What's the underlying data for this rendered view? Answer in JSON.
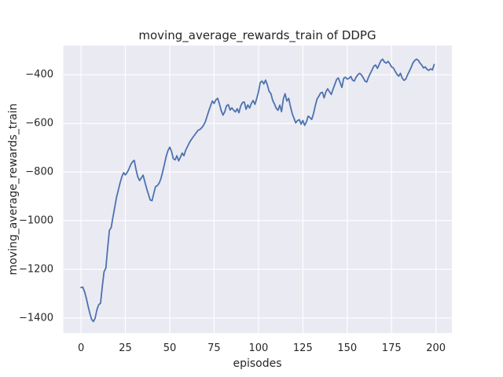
{
  "chart_data": {
    "type": "line",
    "title": "moving_average_rewards_train of DDPG",
    "xlabel": "episodes",
    "ylabel": "moving_average_rewards_train",
    "x_start": 0,
    "x_step": 1,
    "values": [
      -1275,
      -1273,
      -1292,
      -1320,
      -1352,
      -1382,
      -1406,
      -1415,
      -1400,
      -1365,
      -1345,
      -1340,
      -1270,
      -1210,
      -1195,
      -1115,
      -1040,
      -1028,
      -985,
      -945,
      -905,
      -875,
      -845,
      -820,
      -803,
      -812,
      -802,
      -788,
      -770,
      -758,
      -752,
      -790,
      -820,
      -835,
      -824,
      -813,
      -842,
      -868,
      -892,
      -915,
      -918,
      -888,
      -860,
      -856,
      -846,
      -828,
      -800,
      -768,
      -735,
      -712,
      -698,
      -715,
      -745,
      -750,
      -733,
      -754,
      -740,
      -722,
      -733,
      -710,
      -695,
      -680,
      -668,
      -658,
      -648,
      -638,
      -628,
      -625,
      -618,
      -608,
      -595,
      -572,
      -548,
      -528,
      -508,
      -518,
      -503,
      -497,
      -520,
      -548,
      -566,
      -552,
      -528,
      -523,
      -545,
      -536,
      -546,
      -553,
      -540,
      -556,
      -528,
      -514,
      -512,
      -542,
      -524,
      -537,
      -518,
      -506,
      -522,
      -498,
      -470,
      -432,
      -426,
      -438,
      -422,
      -442,
      -468,
      -478,
      -505,
      -520,
      -538,
      -546,
      -525,
      -552,
      -500,
      -478,
      -508,
      -497,
      -530,
      -560,
      -578,
      -598,
      -588,
      -585,
      -603,
      -588,
      -608,
      -595,
      -570,
      -576,
      -584,
      -560,
      -528,
      -500,
      -488,
      -475,
      -472,
      -495,
      -470,
      -458,
      -470,
      -481,
      -460,
      -440,
      -420,
      -413,
      -432,
      -452,
      -415,
      -410,
      -418,
      -415,
      -407,
      -422,
      -426,
      -410,
      -400,
      -394,
      -400,
      -412,
      -426,
      -430,
      -410,
      -395,
      -380,
      -365,
      -360,
      -374,
      -358,
      -342,
      -336,
      -348,
      -352,
      -345,
      -355,
      -368,
      -372,
      -385,
      -398,
      -406,
      -394,
      -414,
      -423,
      -418,
      -400,
      -386,
      -370,
      -352,
      -342,
      -336,
      -340,
      -352,
      -360,
      -372,
      -368,
      -378,
      -382,
      -376,
      -380,
      -358
    ],
    "xticks": {
      "values": [
        0,
        25,
        50,
        75,
        100,
        125,
        150,
        175,
        200
      ],
      "labels": [
        "0",
        "25",
        "50",
        "75",
        "100",
        "125",
        "150",
        "175",
        "200"
      ]
    },
    "yticks": {
      "values": [
        -400,
        -600,
        -800,
        -1000,
        -1200,
        -1400
      ],
      "labels": [
        "−400",
        "−600",
        "−800",
        "−1000",
        "−1200",
        "−1400"
      ]
    },
    "xlim": [
      -10,
      209
    ],
    "ylim": [
      -1462,
      -280
    ],
    "grid": true,
    "legend": null,
    "colors": {
      "line": "#4c72b0",
      "axes_bg": "#eaeaf2",
      "grid": "#ffffff",
      "text": "#262626",
      "figure_bg": "#ffffff"
    }
  }
}
